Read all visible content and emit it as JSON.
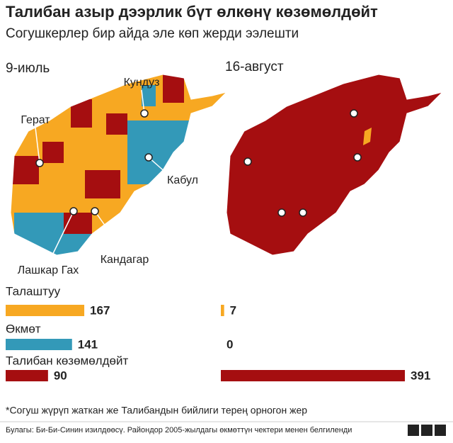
{
  "title": "Талибан азыр дээрлик бүт өлкөнү көзөмөлдөйт",
  "subtitle": "Согушкерлер бир айда эле көп жерди ээлешти",
  "chart_data": {
    "type": "bar",
    "categories": [
      "Талаштуу",
      "Өкмөт",
      "Талибан көзөмөлдөйт"
    ],
    "colors": [
      "#f7a822",
      "#3399b8",
      "#a50e10"
    ],
    "series": [
      {
        "name": "9-июль",
        "values": [
          167,
          141,
          90
        ]
      },
      {
        "name": "16-август",
        "values": [
          7,
          0,
          391
        ]
      }
    ]
  },
  "annotations": [
    "Кундуз",
    "Герат",
    "Кабул",
    "Лашкар Гах",
    "Кандагар"
  ],
  "footnote": "*Согуш жүрүп жаткан же Талибандын бийлиги терең орногон жер",
  "source": "Булагы: Би-Би-Синин изилдөөсү. Райондор 2005-жылдагы өкмөттүн чектери менен белгиленди",
  "logo": "BBC"
}
